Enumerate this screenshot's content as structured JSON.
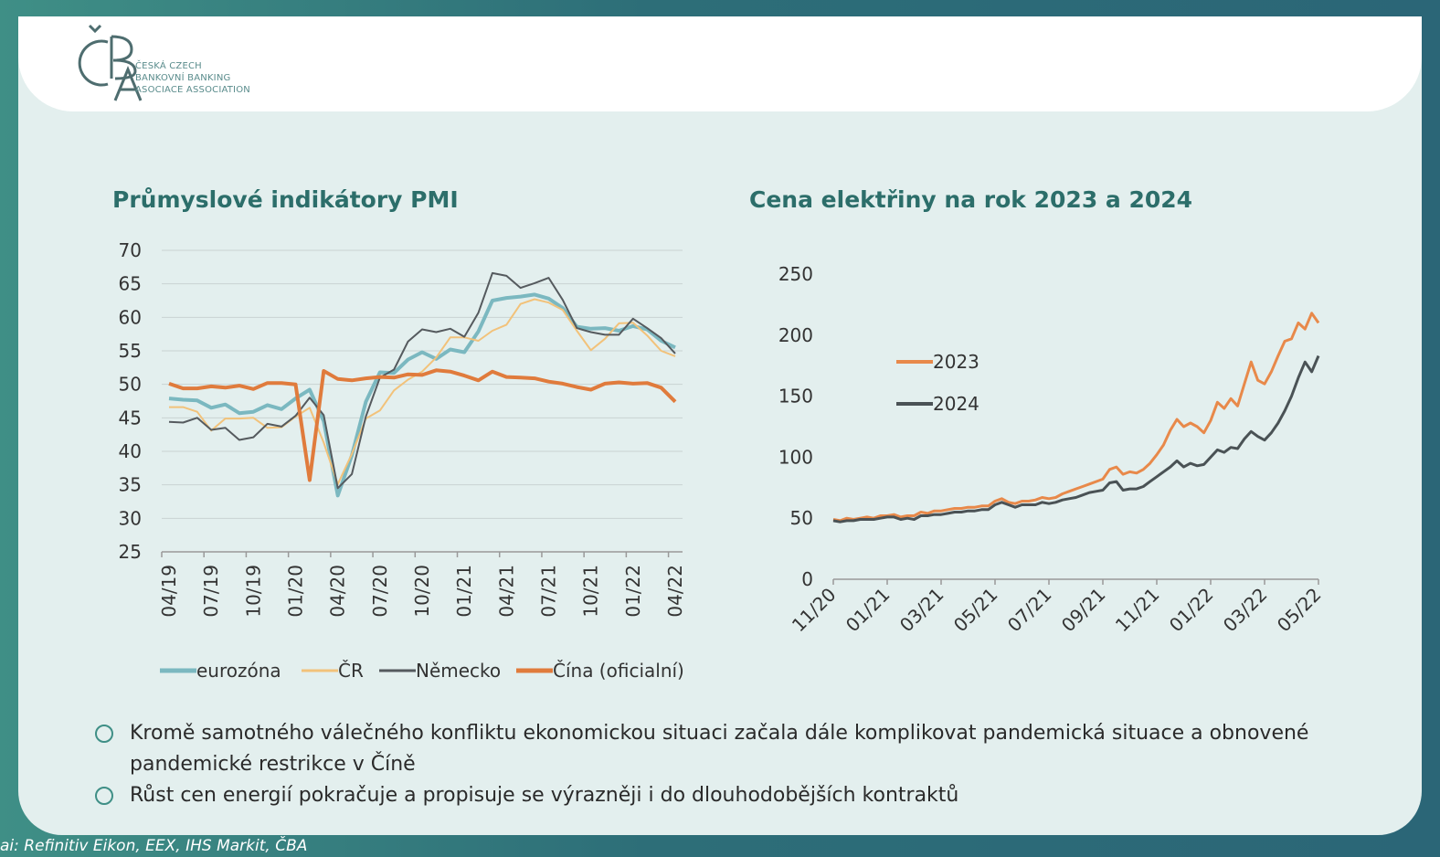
{
  "logo": {
    "line1": "ČESKÁ CZECH",
    "line2": "BANKOVNÍ BANKING",
    "line3": "ASOCIACE ASSOCIATION",
    "mark_text": "ČBA"
  },
  "source_text": "ai: Refinitiv Eikon, EEX, IHS Markit, ČBA",
  "bullets": [
    "Kromě samotného válečného konfliktu ekonomickou situaci začala dále komplikovat pandemická situace a obnovené pandemické restrikce v Číně",
    "Růst cen energií pokračuje a propisuje se výrazněji i do dlouhodobějších kontraktů"
  ],
  "colors": {
    "title": "#2c6e6a",
    "eurozone": "#7bb8c0",
    "cr": "#f2c27a",
    "germany": "#555a5e",
    "china": "#e07b3c",
    "y2023": "#e8894a",
    "y2024": "#4a5255"
  },
  "chart_data": [
    {
      "type": "line",
      "title": "Průmyslové indikátory PMI",
      "xlabel": "",
      "ylabel": "",
      "ylim": [
        25,
        70
      ],
      "yticks": [
        25,
        30,
        35,
        40,
        45,
        50,
        55,
        60,
        65,
        70
      ],
      "grid": true,
      "legend_position": "bottom",
      "x": [
        "04/19",
        "05/19",
        "06/19",
        "07/19",
        "08/19",
        "09/19",
        "10/19",
        "11/19",
        "12/19",
        "01/20",
        "02/20",
        "03/20",
        "04/20",
        "05/20",
        "06/20",
        "07/20",
        "08/20",
        "09/20",
        "10/20",
        "11/20",
        "12/20",
        "01/21",
        "02/21",
        "03/21",
        "04/21",
        "05/21",
        "06/21",
        "07/21",
        "08/21",
        "09/21",
        "10/21",
        "11/21",
        "12/21",
        "01/22",
        "02/22",
        "03/22",
        "04/22"
      ],
      "xtick_labels": [
        "04/19",
        "07/19",
        "10/19",
        "01/20",
        "04/20",
        "07/20",
        "10/20",
        "01/21",
        "04/21",
        "07/21",
        "10/21",
        "01/22",
        "04/22"
      ],
      "series": [
        {
          "name": "eurozóna",
          "values": [
            47.9,
            47.7,
            47.6,
            46.5,
            47.0,
            45.7,
            45.9,
            46.9,
            46.3,
            47.9,
            49.2,
            44.5,
            33.4,
            39.4,
            47.4,
            51.8,
            51.7,
            53.7,
            54.8,
            53.8,
            55.2,
            54.8,
            57.9,
            62.5,
            62.9,
            63.1,
            63.4,
            62.8,
            61.4,
            58.6,
            58.3,
            58.4,
            58.0,
            58.7,
            58.2,
            56.5,
            55.5
          ]
        },
        {
          "name": "ČR",
          "values": [
            46.6,
            46.6,
            45.9,
            43.1,
            44.9,
            44.9,
            45.0,
            43.5,
            43.6,
            45.2,
            46.5,
            41.3,
            35.1,
            39.6,
            44.9,
            46.1,
            49.1,
            50.7,
            51.9,
            54.0,
            57.0,
            57.0,
            56.5,
            58.0,
            58.9,
            62.0,
            62.7,
            62.2,
            61.1,
            58.0,
            55.1,
            56.8,
            59.1,
            59.2,
            57.3,
            55.0,
            54.2
          ]
        },
        {
          "name": "Německo",
          "values": [
            44.4,
            44.3,
            45.0,
            43.2,
            43.5,
            41.7,
            42.1,
            44.1,
            43.7,
            45.3,
            48.0,
            45.4,
            34.5,
            36.6,
            45.2,
            51.0,
            52.2,
            56.4,
            58.2,
            57.8,
            58.3,
            57.1,
            60.7,
            66.6,
            66.2,
            64.4,
            65.1,
            65.9,
            62.6,
            58.4,
            57.8,
            57.4,
            57.4,
            59.8,
            58.4,
            56.9,
            54.6
          ]
        },
        {
          "name": "Čína (oficialní)",
          "values": [
            50.1,
            49.4,
            49.4,
            49.7,
            49.5,
            49.8,
            49.3,
            50.2,
            50.2,
            50.0,
            35.7,
            52.0,
            50.8,
            50.6,
            50.9,
            51.1,
            51.0,
            51.5,
            51.4,
            52.1,
            51.9,
            51.3,
            50.6,
            51.9,
            51.1,
            51.0,
            50.9,
            50.4,
            50.1,
            49.6,
            49.2,
            50.1,
            50.3,
            50.1,
            50.2,
            49.5,
            47.4
          ]
        }
      ]
    },
    {
      "type": "line",
      "title": "Cena elektřiny na rok 2023 a 2024",
      "xlabel": "",
      "ylabel": "",
      "ylim": [
        0,
        250
      ],
      "yticks": [
        0,
        50,
        100,
        150,
        200,
        250
      ],
      "grid": false,
      "legend_position": "left",
      "x_range": [
        "11/20",
        "05/22"
      ],
      "xtick_labels": [
        "11/20",
        "01/21",
        "03/21",
        "05/21",
        "07/21",
        "09/21",
        "11/21",
        "01/22",
        "03/22",
        "05/22"
      ],
      "x": [
        0,
        0.25,
        0.5,
        0.75,
        1,
        1.25,
        1.5,
        1.75,
        2,
        2.25,
        2.5,
        2.75,
        3,
        3.25,
        3.5,
        3.75,
        4,
        4.25,
        4.5,
        4.75,
        5,
        5.25,
        5.5,
        5.75,
        6,
        6.25,
        6.5,
        6.75,
        7,
        7.25,
        7.5,
        7.75,
        8,
        8.25,
        8.5,
        8.75,
        9,
        9.25,
        9.5,
        9.75,
        10,
        10.25,
        10.5,
        10.75,
        11,
        11.25,
        11.5,
        11.75,
        12,
        12.25,
        12.5,
        12.75,
        13,
        13.25,
        13.5,
        13.75,
        14,
        14.25,
        14.5,
        14.75,
        15,
        15.25,
        15.5,
        15.75,
        16,
        16.25,
        16.5,
        16.75,
        17,
        17.25,
        17.5,
        17.75,
        18
      ],
      "series": [
        {
          "name": "2023",
          "values": [
            49,
            48,
            50,
            49,
            50,
            51,
            50,
            52,
            52,
            53,
            51,
            52,
            52,
            55,
            54,
            56,
            56,
            57,
            58,
            58,
            59,
            59,
            60,
            60,
            64,
            66,
            63,
            62,
            64,
            64,
            65,
            67,
            66,
            67,
            70,
            72,
            74,
            76,
            78,
            80,
            82,
            90,
            92,
            86,
            88,
            87,
            90,
            95,
            102,
            110,
            122,
            131,
            125,
            128,
            125,
            120,
            130,
            145,
            140,
            148,
            142,
            160,
            178,
            163,
            160,
            170,
            183,
            195,
            197,
            210,
            205,
            218,
            210
          ]
        },
        {
          "name": "2024",
          "values": [
            48,
            47,
            48,
            48,
            49,
            49,
            49,
            50,
            51,
            51,
            49,
            50,
            49,
            52,
            52,
            53,
            53,
            54,
            55,
            55,
            56,
            56,
            57,
            57,
            61,
            63,
            61,
            59,
            61,
            61,
            61,
            63,
            62,
            63,
            65,
            66,
            67,
            69,
            71,
            72,
            73,
            79,
            80,
            73,
            74,
            74,
            76,
            80,
            84,
            88,
            92,
            97,
            92,
            95,
            93,
            94,
            100,
            106,
            104,
            108,
            107,
            115,
            121,
            117,
            114,
            120,
            128,
            138,
            150,
            165,
            178,
            170,
            183
          ]
        }
      ]
    }
  ]
}
